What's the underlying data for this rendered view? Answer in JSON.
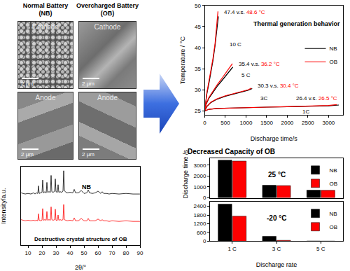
{
  "figure": {
    "sem": {
      "columns": [
        {
          "lines": [
            "Normal Battery",
            "(NB)"
          ]
        },
        {
          "lines": [
            "Overcharged Battery",
            "(OB)"
          ]
        }
      ],
      "rows": [
        "Cathode",
        "Anode"
      ],
      "scale_bar": "2 μm"
    }
  },
  "chart_data": [
    {
      "type": "line",
      "title": "Destructive crystal structure of OB",
      "x_label": "2θ/°",
      "y_label": "Intensity/a.u.",
      "xlim": [
        5,
        90
      ],
      "xticks": [
        10,
        20,
        30,
        40,
        50,
        60,
        70,
        80,
        90
      ],
      "ylim": [
        -30,
        105
      ],
      "tick_labels": "x",
      "x": [
        5,
        8,
        10,
        12,
        14,
        15,
        16,
        17,
        17.5,
        18,
        19,
        20,
        20.5,
        21,
        22,
        23,
        23.5,
        24,
        25,
        26,
        26.5,
        27,
        28,
        29,
        29.5,
        30,
        31,
        31.5,
        32,
        33,
        34,
        35,
        35.5,
        36,
        37,
        38,
        40,
        42,
        43,
        44,
        46,
        48,
        50,
        52,
        53,
        54,
        56,
        58,
        60,
        62,
        63,
        64,
        66,
        68,
        70,
        75,
        80,
        85,
        90
      ],
      "series": [
        {
          "name": "NB",
          "color": "#000000",
          "values": [
            60,
            58,
            59,
            58,
            60,
            58,
            60,
            59,
            72,
            59,
            60,
            61,
            82,
            60,
            62,
            60,
            78,
            61,
            62,
            61,
            90,
            62,
            61,
            63,
            84,
            62,
            61,
            74,
            61,
            62,
            61,
            63,
            98,
            64,
            61,
            60,
            61,
            60,
            66,
            60,
            60,
            64,
            59,
            60,
            65,
            60,
            59,
            60,
            63,
            59,
            62,
            59,
            59,
            58,
            59,
            58,
            59,
            58,
            58
          ]
        },
        {
          "color": "#ff0000",
          "values": [
            14,
            12,
            13,
            12,
            13,
            12,
            13,
            12,
            24,
            13,
            12,
            13,
            33,
            13,
            14,
            13,
            28,
            13,
            14,
            13,
            36,
            14,
            13,
            14,
            32,
            13,
            13,
            22,
            13,
            14,
            13,
            14,
            40,
            14,
            13,
            12,
            13,
            12,
            17,
            12,
            12,
            16,
            12,
            12,
            16,
            12,
            12,
            12,
            15,
            12,
            14,
            12,
            12,
            11,
            12,
            11,
            12,
            11,
            11
          ]
        }
      ]
    },
    {
      "type": "line",
      "title": "Thermal generation behavior",
      "x_label": "Discharge time/s",
      "y_label": "Temperature / °C",
      "xlim": [
        0,
        3350
      ],
      "xticks": [
        0,
        500,
        1000,
        1500,
        2000,
        2500,
        3000
      ],
      "ylim": [
        24,
        50
      ],
      "yticks": [
        25,
        30,
        35,
        40,
        45,
        50
      ],
      "legend": "right",
      "separator": "v.s.",
      "unit": "°C",
      "series": [
        {
          "name": "NB",
          "color": "#000000"
        },
        {
          "name": "OB",
          "color": "#ff0000"
        }
      ],
      "runs": [
        {
          "label": "10 C",
          "peak_labels": [
            47.4,
            48.6
          ],
          "x": [
            [
              0,
              20,
              50,
              100,
              150,
              200,
              250,
              300,
              330
            ],
            [
              0,
              20,
              50,
              100,
              150,
              200,
              250,
              290,
              320
            ]
          ],
          "values": [
            [
              25,
              27,
              29,
              31.5,
              34,
              37,
              40.5,
              44.5,
              47.4
            ],
            [
              25,
              27.2,
              29.3,
              32,
              34.5,
              37.5,
              41,
              45,
              48.6
            ]
          ]
        },
        {
          "label": "5 C",
          "peak_labels": [
            35.4,
            36.2
          ],
          "x": [
            [
              0,
              30,
              100,
              200,
              300,
              400,
              500,
              600,
              680
            ],
            [
              0,
              30,
              100,
              200,
              300,
              400,
              500,
              600,
              670
            ]
          ],
          "values": [
            [
              25,
              26.5,
              28,
              29.5,
              30.8,
              32,
              33.2,
              34.4,
              35.4
            ],
            [
              25,
              26.6,
              28.2,
              29.8,
              31.2,
              32.5,
              33.8,
              35.1,
              36.2
            ]
          ]
        },
        {
          "label": "3C",
          "peak_labels": [
            30.3,
            30.4
          ],
          "x": [
            [
              0,
              50,
              150,
              300,
              500,
              700,
              900,
              1050,
              1150
            ],
            [
              0,
              50,
              150,
              300,
              500,
              700,
              900,
              1050,
              1130
            ]
          ],
          "values": [
            [
              25,
              26,
              27,
              27.8,
              28.5,
              29,
              29.5,
              29.9,
              30.3
            ],
            [
              25,
              26.1,
              27.1,
              27.9,
              28.6,
              29.1,
              29.6,
              30,
              30.4
            ]
          ]
        },
        {
          "label": "1C",
          "peak_labels": [
            26.4,
            26.5
          ],
          "x": [
            [
              0,
              100,
              300,
              600,
              1000,
              1500,
              2000,
              2500,
              3000,
              3250
            ],
            [
              0,
              100,
              300,
              600,
              1000,
              1500,
              2000,
              2500,
              3000,
              3200
            ]
          ],
          "values": [
            [
              25,
              25.4,
              25.6,
              25.7,
              25.8,
              25.9,
              26,
              26.1,
              26.2,
              26.4
            ],
            [
              25,
              25.4,
              25.6,
              25.7,
              25.8,
              25.9,
              26,
              26.1,
              26.3,
              26.5
            ]
          ]
        }
      ]
    },
    {
      "type": "bar",
      "title": "Decreased Capacity of OB",
      "x_label": "Discharge rate",
      "y_label": "Discharge time /s",
      "categories": [
        "1 C",
        "3 C",
        "5 C"
      ],
      "legend": "upper right",
      "panels": [
        {
          "label": "25 °C",
          "ylim": [
            0,
            3600
          ],
          "yticks": [
            0,
            1000,
            2000,
            3000
          ],
          "series": [
            {
              "name": "NB",
              "color": "#000000",
              "values": [
                3450,
                1150,
                700
              ]
            },
            {
              "name": "OB",
              "color": "#ff0000",
              "values": [
                3370,
                1120,
                690
              ]
            }
          ]
        },
        {
          "label": "-20 °C",
          "ylim": [
            0,
            2700
          ],
          "yticks": [
            0,
            600,
            1200,
            1800,
            2400
          ],
          "series": [
            {
              "name": "NB",
              "color": "#000000",
              "values": [
                2550,
                330,
                15
              ]
            },
            {
              "name": "OB",
              "color": "#ff0000",
              "values": [
                1720,
                60,
                8
              ]
            }
          ]
        }
      ]
    }
  ]
}
